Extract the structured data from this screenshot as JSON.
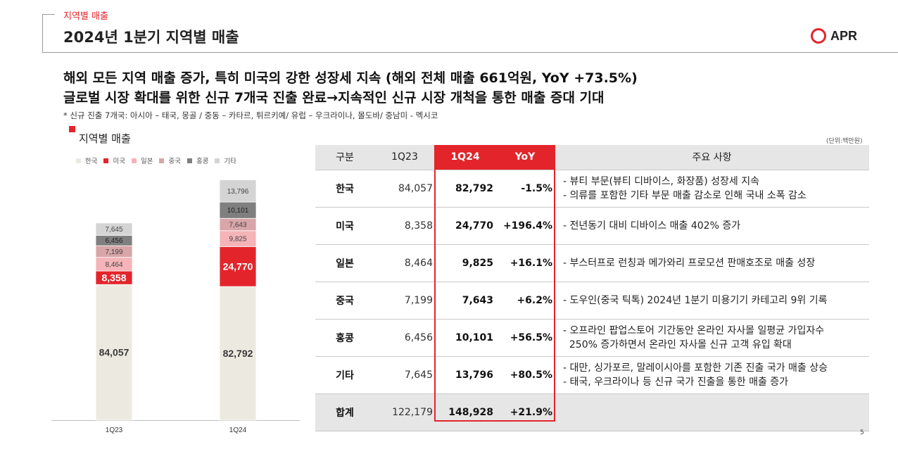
{
  "header": {
    "section_label": "지역별 매출",
    "title": "2024년 1분기 지역별 매출",
    "logo_text": "APR"
  },
  "headlines": [
    "해외 모든 지역 매출 증가, 특히 미국의 강한 성장세 지속 (해외 전체 매출 661억원, YoY +73.5%)",
    "글로벌 시장 확대를 위한 신규 7개국 진출 완료→지속적인 신규 시장 개척을 통한 매출 증대 기대"
  ],
  "footnote": "* 신규 진출 7개국: 아시아 – 태국, 몽골 / 중동 – 카타르, 튀르키예/ 유럽 – 우크라이나, 몰도바/ 중남미 - 멕시코",
  "chart_section_title": "지역별 매출",
  "unit_note": "(단위:백만원)",
  "chart_data": {
    "type": "bar",
    "stacked": true,
    "categories": [
      "1Q23",
      "1Q24"
    ],
    "series": [
      {
        "name": "한국",
        "color": "#eceae0",
        "values": [
          84057,
          82792
        ]
      },
      {
        "name": "미국",
        "color": "#e3252b",
        "values": [
          8358,
          24770
        ]
      },
      {
        "name": "일본",
        "color": "#f4b4b8",
        "values": [
          8464,
          9825
        ]
      },
      {
        "name": "중국",
        "color": "#d8a5a9",
        "values": [
          7199,
          7643
        ]
      },
      {
        "name": "홍콩",
        "color": "#7f7f7f",
        "values": [
          6456,
          10101
        ]
      },
      {
        "name": "기타",
        "color": "#d4d4d4",
        "values": [
          7645,
          13796
        ]
      }
    ],
    "value_labels": [
      [
        "84,057",
        "8,358",
        "8,464",
        "7,199",
        "6,456",
        "7,645"
      ],
      [
        "82,792",
        "24,770",
        "9,825",
        "7,643",
        "10,101",
        "13,796"
      ]
    ],
    "legend": "top-left",
    "grid": false
  },
  "table": {
    "headers": [
      "구분",
      "1Q23",
      "1Q24",
      "YoY",
      "주요 사항"
    ],
    "rows": [
      {
        "region": "한국",
        "prev": "84,057",
        "cur": "82,792",
        "yoy": "-1.5%",
        "notes": [
          "- 뷰티 부문(뷰티 디바이스, 화장품) 성장세 지속",
          "- 의류를 포함한 기타 부문 매출 감소로 인해 국내 소폭 감소"
        ]
      },
      {
        "region": "미국",
        "prev": "8,358",
        "cur": "24,770",
        "yoy": "+196.4%",
        "notes": [
          "- 전년동기 대비 디바이스 매출 402% 증가"
        ]
      },
      {
        "region": "일본",
        "prev": "8,464",
        "cur": "9,825",
        "yoy": "+16.1%",
        "notes": [
          "- 부스터프로 런칭과 메가와리 프로모션 판매호조로 매출 성장"
        ]
      },
      {
        "region": "중국",
        "prev": "7,199",
        "cur": "7,643",
        "yoy": "+6.2%",
        "notes": [
          "- 도우인(중국 틱톡) 2024년 1분기 미용기기 카테고리 9위 기록"
        ]
      },
      {
        "region": "홍콩",
        "prev": "6,456",
        "cur": "10,101",
        "yoy": "+56.5%",
        "notes": [
          "- 오프라인 팝업스토어 기간동안 온라인 자사몰 일평균 가입자수",
          "  250% 증가하면서 온라인 자사몰 신규 고객 유입 확대"
        ]
      },
      {
        "region": "기타",
        "prev": "7,645",
        "cur": "13,796",
        "yoy": "+80.5%",
        "notes": [
          "- 대만, 싱가포르, 말레이시아를 포함한 기존 진출 국가 매출 상승",
          "- 태국, 우크라이나 등 신규 국가 진출을 통한 매출 증가"
        ]
      }
    ],
    "total": {
      "region": "합계",
      "prev": "122,179",
      "cur": "148,928",
      "yoy": "+21.9%"
    }
  },
  "page_number": "5"
}
